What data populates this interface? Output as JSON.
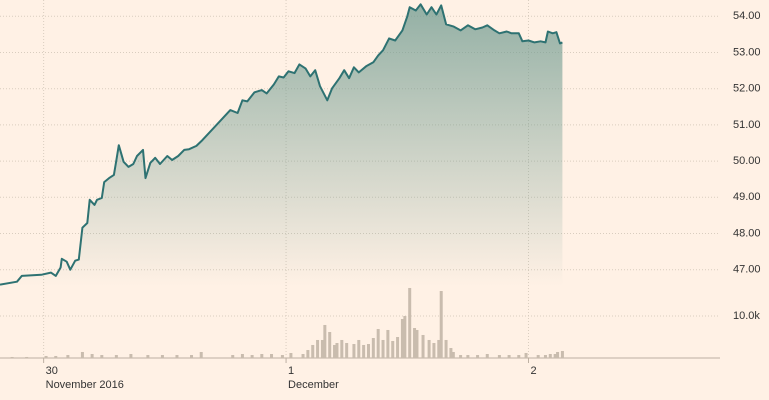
{
  "chart_data": [
    {
      "type": "area",
      "color": "#2e7272",
      "grid": true,
      "xlim": [
        -0.18,
        2.79
      ],
      "ylim": [
        46.55,
        54.45
      ],
      "yticks": [
        {
          "value": 47,
          "label": "47.00"
        },
        {
          "value": 48,
          "label": "48.00"
        },
        {
          "value": 49,
          "label": "49.00"
        },
        {
          "value": 50,
          "label": "50.00"
        },
        {
          "value": 51,
          "label": "51.00"
        },
        {
          "value": 52,
          "label": "52.00"
        },
        {
          "value": 53,
          "label": "53.00"
        },
        {
          "value": 54,
          "label": "54.00"
        }
      ],
      "xticks": [
        {
          "value": 0,
          "label": "30"
        },
        {
          "value": 1,
          "label": "1"
        },
        {
          "value": 2,
          "label": "2"
        }
      ],
      "month_labels": [
        {
          "value": 0,
          "label": "November 2016"
        },
        {
          "value": 1,
          "label": "December"
        }
      ],
      "x": [
        -0.18,
        -0.11,
        -0.09,
        -0.01,
        0.03,
        0.05,
        0.07,
        0.075,
        0.095,
        0.11,
        0.13,
        0.145,
        0.16,
        0.18,
        0.19,
        0.21,
        0.22,
        0.24,
        0.25,
        0.27,
        0.29,
        0.3,
        0.31,
        0.33,
        0.35,
        0.37,
        0.385,
        0.41,
        0.42,
        0.44,
        0.46,
        0.48,
        0.51,
        0.53,
        0.555,
        0.58,
        0.6,
        0.63,
        0.655,
        0.77,
        0.8,
        0.82,
        0.84,
        0.87,
        0.9,
        0.92,
        0.95,
        0.97,
        0.99,
        1.01,
        1.035,
        1.055,
        1.08,
        1.1,
        1.12,
        1.14,
        1.17,
        1.19,
        1.22,
        1.24,
        1.26,
        1.28,
        1.3,
        1.33,
        1.36,
        1.38,
        1.4,
        1.425,
        1.45,
        1.48,
        1.5,
        1.51,
        1.535,
        1.555,
        1.58,
        1.6,
        1.62,
        1.64,
        1.66,
        1.69,
        1.72,
        1.75,
        1.78,
        1.81,
        1.83,
        1.86,
        1.88,
        1.91,
        1.93,
        1.96,
        1.975,
        2.0,
        2.025,
        2.05,
        2.07,
        2.08,
        2.1,
        2.115,
        2.13,
        2.14
      ],
      "values": [
        46.59,
        46.67,
        46.83,
        46.86,
        46.92,
        46.83,
        47.06,
        47.3,
        47.22,
        47.0,
        47.25,
        47.28,
        48.16,
        48.29,
        48.93,
        48.79,
        48.93,
        48.98,
        49.42,
        49.53,
        49.62,
        50.03,
        50.44,
        49.98,
        49.84,
        49.92,
        50.14,
        50.31,
        49.53,
        49.95,
        50.09,
        49.92,
        50.14,
        50.03,
        50.14,
        50.31,
        50.33,
        50.42,
        50.58,
        51.41,
        51.33,
        51.68,
        51.65,
        51.9,
        51.96,
        51.87,
        52.12,
        52.34,
        52.31,
        52.48,
        52.43,
        52.67,
        52.56,
        52.34,
        52.51,
        52.07,
        51.68,
        52.01,
        52.29,
        52.51,
        52.29,
        52.59,
        52.45,
        52.62,
        52.73,
        52.92,
        53.06,
        53.39,
        53.33,
        53.61,
        54.0,
        54.25,
        54.16,
        54.33,
        54.05,
        54.25,
        54.05,
        54.3,
        53.78,
        53.72,
        53.61,
        53.75,
        53.64,
        53.69,
        53.75,
        53.61,
        53.53,
        53.58,
        53.53,
        53.53,
        53.31,
        53.33,
        53.28,
        53.31,
        53.28,
        53.58,
        53.53,
        53.56,
        53.25,
        53.28
      ]
    },
    {
      "type": "bar",
      "color": "#c9bcae",
      "xlim": [
        -0.18,
        2.79
      ],
      "ylim": [
        0,
        17000
      ],
      "yticks": [
        {
          "value": 10000,
          "label": "10.0k"
        }
      ],
      "x": [
        -0.13,
        -0.07,
        0.01,
        0.05,
        0.1,
        0.16,
        0.2,
        0.24,
        0.3,
        0.36,
        0.43,
        0.49,
        0.55,
        0.61,
        0.65,
        0.78,
        0.82,
        0.86,
        0.9,
        0.94,
        0.985,
        1.02,
        1.07,
        1.09,
        1.11,
        1.13,
        1.15,
        1.16,
        1.18,
        1.2,
        1.21,
        1.23,
        1.25,
        1.28,
        1.3,
        1.32,
        1.34,
        1.36,
        1.38,
        1.4,
        1.42,
        1.44,
        1.46,
        1.48,
        1.49,
        1.51,
        1.53,
        1.54,
        1.565,
        1.59,
        1.61,
        1.63,
        1.64,
        1.66,
        1.68,
        1.69,
        1.72,
        1.75,
        1.79,
        1.83,
        1.88,
        1.92,
        1.96,
        1.99,
        2.04,
        2.07,
        2.09,
        2.11,
        2.12,
        2.14
      ],
      "values": [
        240,
        240,
        480,
        480,
        710,
        1430,
        950,
        710,
        710,
        950,
        710,
        710,
        710,
        710,
        1430,
        710,
        950,
        710,
        950,
        950,
        710,
        1190,
        950,
        1900,
        3100,
        4290,
        4290,
        7860,
        6190,
        3100,
        3570,
        4290,
        3570,
        3330,
        4290,
        3100,
        3330,
        4760,
        6900,
        4290,
        6670,
        4050,
        5000,
        9290,
        10000,
        16670,
        7140,
        6670,
        5480,
        4290,
        3570,
        4290,
        15950,
        4290,
        2380,
        1430,
        710,
        710,
        710,
        950,
        710,
        710,
        710,
        1190,
        710,
        710,
        950,
        950,
        1430,
        1670
      ]
    }
  ]
}
